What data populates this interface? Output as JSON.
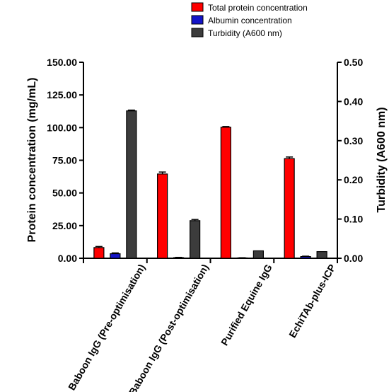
{
  "chart_data": {
    "type": "bar",
    "categories": [
      "Baboon IgG (Pre-optimisation)",
      "Baboon IgG (Post-optimisation)",
      "Purified Equine IgG",
      "EchiTAb-plus-ICP"
    ],
    "series": [
      {
        "name": "Total protein concentration",
        "axis": "left",
        "color": "#ff0000",
        "values": [
          8.2,
          64.5,
          100.3,
          76.3
        ],
        "errors": [
          0.8,
          1.5,
          0.5,
          1.2
        ]
      },
      {
        "name": "Albumin concentration",
        "axis": "left",
        "color": "#1414c8",
        "values": [
          3.5,
          0.5,
          0.3,
          1.3
        ],
        "errors": [
          0.6,
          0.2,
          0.1,
          0.3
        ]
      },
      {
        "name": "Turbidity (A600 nm)",
        "axis": "right",
        "color": "#3c3c3c",
        "values": [
          0.376,
          0.096,
          0.019,
          0.017
        ],
        "errors": [
          0.002,
          0.003,
          0.0,
          0.0
        ]
      }
    ],
    "y_left": {
      "label": "Protein concentration (mg/mL)",
      "ylim": [
        0,
        150
      ],
      "ticks": [
        "0.00",
        "25.00",
        "50.00",
        "75.00",
        "100.00",
        "125.00",
        "150.00"
      ]
    },
    "y_right": {
      "label": "Turbidity (A600 nm)",
      "ylim": [
        0,
        0.5
      ],
      "ticks": [
        "0.00",
        "0.10",
        "0.20",
        "0.30",
        "0.40",
        "0.50"
      ]
    },
    "legend_position": "top-center",
    "grid": false
  }
}
